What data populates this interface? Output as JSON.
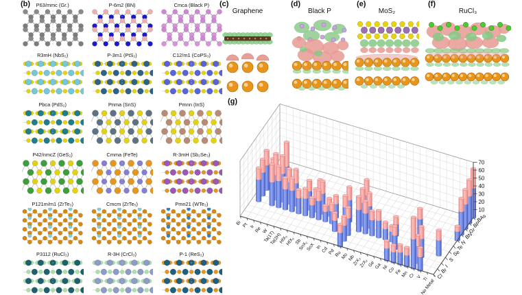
{
  "panel_b": {
    "label": "(b)",
    "structures": [
      {
        "title": "P63/mmc (Gr.)",
        "pattern": "honeycomb",
        "c1": "#7d7d7d",
        "c2": "#8a8a8a"
      },
      {
        "title": "P-6m2 (BN)",
        "pattern": "honeycomb",
        "c1": "#1a1acc",
        "c2": "#efb0ac"
      },
      {
        "title": "Cmca (Black P)",
        "pattern": "honeycomb",
        "c1": "#d993dd",
        "c2": "#cf86d6"
      },
      {
        "title": "R3mH (NbS₂)",
        "pattern": "tri",
        "c1": "#72c9d8",
        "c2": "#e3d211"
      },
      {
        "title": "P-3m1 (PtS₂)",
        "pattern": "tri",
        "c1": "#2f6286",
        "c2": "#e3d211"
      },
      {
        "title": "C12/m1 (CoPS₃)",
        "pattern": "tri",
        "c1": "#5a63d8",
        "c2": "#e3d211"
      },
      {
        "title": "Pbca (PdS₂)",
        "pattern": "tri",
        "c1": "#1f7d8c",
        "c2": "#e3d211"
      },
      {
        "title": "Pnma (SnS)",
        "pattern": "checker",
        "c1": "#5d7283",
        "c2": "#e3d211"
      },
      {
        "title": "Pmnn (InS)",
        "pattern": "checker",
        "c1": "#b98a76",
        "c2": "#e3d211"
      },
      {
        "title": "P42/nmcZ (GeS₂)",
        "pattern": "checker",
        "c1": "#3e9e3e",
        "c2": "#e3d211"
      },
      {
        "title": "Cmma (FeTe)",
        "pattern": "checker",
        "c1": "#e59620",
        "c2": "#847fd2"
      },
      {
        "title": "R-3mH (Sb₂Se₃)",
        "pattern": "tri",
        "c1": "#9b59b6",
        "c2": "#e59620"
      },
      {
        "title": "P121m/m1 (ZrTe₃)",
        "pattern": "zigzag",
        "c1": "#d8880f",
        "c2": "#7fd0da"
      },
      {
        "title": "Cmcm (ZrTe₅)",
        "pattern": "zigzag",
        "c1": "#d8880f",
        "c2": "#7fd0da"
      },
      {
        "title": "Pmn21 (WTe₂)",
        "pattern": "zigzag",
        "c1": "#d8880f",
        "c2": "#2f86c8"
      },
      {
        "title": "P3112 (RuCl₃)",
        "pattern": "tri",
        "c1": "#1f6070",
        "c2": "#a9e0a9"
      },
      {
        "title": "R-3H (CrCl₃)",
        "pattern": "tri",
        "c1": "#8e9cc9",
        "c2": "#a9e0a9"
      },
      {
        "title": "P-1 (ReS₂)",
        "pattern": "tri",
        "c1": "#1f6080",
        "c2": "#e59620"
      }
    ]
  },
  "panel_c": {
    "label": "(c)",
    "title": "Graphene"
  },
  "panel_d": {
    "label": "(d)",
    "title": "Black P"
  },
  "panel_e": {
    "label": "(e)",
    "title": "MoS₂"
  },
  "panel_f": {
    "label": "(f)",
    "title": "RuCl₃"
  },
  "panel_g": {
    "label": "(g)"
  },
  "colors": {
    "substrate_gold": "#e8951e",
    "substrate_highlight": "#ffd9a0",
    "substrate_edge": "#a96408",
    "charge_gain_green": "#86c886",
    "charge_loss_pink": "#e69a92",
    "bar_blue": "#5e7de8",
    "bar_pink": "#f09a98"
  },
  "chart_data": {
    "type": "bar",
    "subtype": "3d-stacked-cylinders",
    "x_categories": [
      "Bi",
      "Pt",
      "Ir",
      "Re",
      "W",
      "Ta(1T)",
      "Ta(2H)",
      "HfX₃",
      "HfX₂",
      "Sb",
      "SnX₂",
      "SnX",
      "In",
      "Cd",
      "Pd",
      "Ru",
      "Mo",
      "Nb",
      "ZrX₃",
      "ZrX₂",
      "Ge",
      "Ga",
      "Ni",
      "Co",
      "Fe",
      "Mn",
      "Cr",
      "V",
      "Ti",
      "No Metal"
    ],
    "y_categories": [
      "Cl",
      "Br",
      "I",
      "S",
      "Se",
      "Te",
      "N",
      "BN",
      "Gr",
      "BP",
      "BAs"
    ],
    "z_ticks": [
      10,
      20,
      30,
      40,
      50,
      60,
      70
    ],
    "z_range": [
      0,
      70
    ],
    "grid": true,
    "series": [
      {
        "name": "blue-segment",
        "color": "#5e7de8"
      },
      {
        "name": "pink-segment",
        "color": "#f09a98"
      }
    ],
    "bars": [
      {
        "x": "Pt",
        "y": "S",
        "blue": 28,
        "pink": 14
      },
      {
        "x": "Pt",
        "y": "Se",
        "blue": 30,
        "pink": 16
      },
      {
        "x": "Pt",
        "y": "Te",
        "blue": 32,
        "pink": 18
      },
      {
        "x": "Ir",
        "y": "Te",
        "blue": 26,
        "pink": 16
      },
      {
        "x": "Re",
        "y": "S",
        "blue": 30,
        "pink": 22
      },
      {
        "x": "Re",
        "y": "Se",
        "blue": 32,
        "pink": 26
      },
      {
        "x": "W",
        "y": "S",
        "blue": 34,
        "pink": 18
      },
      {
        "x": "W",
        "y": "Se",
        "blue": 36,
        "pink": 22
      },
      {
        "x": "W",
        "y": "Te",
        "blue": 38,
        "pink": 30
      },
      {
        "x": "Ta(1T)",
        "y": "S",
        "blue": 26,
        "pink": 14
      },
      {
        "x": "Ta(1T)",
        "y": "Se",
        "blue": 28,
        "pink": 16
      },
      {
        "x": "Ta(2H)",
        "y": "S",
        "blue": 27,
        "pink": 15
      },
      {
        "x": "Ta(2H)",
        "y": "Se",
        "blue": 29,
        "pink": 17
      },
      {
        "x": "HfX₃",
        "y": "S",
        "blue": 20,
        "pink": 10
      },
      {
        "x": "HfX₂",
        "y": "S",
        "blue": 22,
        "pink": 12
      },
      {
        "x": "HfX₂",
        "y": "Se",
        "blue": 24,
        "pink": 13
      },
      {
        "x": "Sb",
        "y": "S",
        "blue": 16,
        "pink": 9
      },
      {
        "x": "Sb",
        "y": "Se",
        "blue": 18,
        "pink": 11
      },
      {
        "x": "Sb",
        "y": "Te",
        "blue": 20,
        "pink": 13
      },
      {
        "x": "SnX₂",
        "y": "S",
        "blue": 24,
        "pink": 13
      },
      {
        "x": "SnX₂",
        "y": "Se",
        "blue": 26,
        "pink": 15
      },
      {
        "x": "SnX",
        "y": "S",
        "blue": 13,
        "pink": 7
      },
      {
        "x": "SnX",
        "y": "Se",
        "blue": 14,
        "pink": 8
      },
      {
        "x": "In",
        "y": "S",
        "blue": 16,
        "pink": 9
      },
      {
        "x": "In",
        "y": "Se",
        "blue": 18,
        "pink": 10
      },
      {
        "x": "Cd",
        "y": "I",
        "blue": 14,
        "pink": 9
      },
      {
        "x": "Pd",
        "y": "S",
        "blue": 26,
        "pink": 14
      },
      {
        "x": "Pd",
        "y": "Se",
        "blue": 28,
        "pink": 16
      },
      {
        "x": "Ru",
        "y": "Cl",
        "blue": 18,
        "pink": 10
      },
      {
        "x": "Ru",
        "y": "Br",
        "blue": 20,
        "pink": 11
      },
      {
        "x": "Ru",
        "y": "I",
        "blue": 22,
        "pink": 13
      },
      {
        "x": "Mo",
        "y": "S",
        "blue": 28,
        "pink": 16
      },
      {
        "x": "Mo",
        "y": "Se",
        "blue": 30,
        "pink": 17
      },
      {
        "x": "Mo",
        "y": "Te",
        "blue": 32,
        "pink": 19
      },
      {
        "x": "Nb",
        "y": "S",
        "blue": 26,
        "pink": 15
      },
      {
        "x": "Nb",
        "y": "Se",
        "blue": 28,
        "pink": 16
      },
      {
        "x": "ZrX₃",
        "y": "S",
        "blue": 20,
        "pink": 11
      },
      {
        "x": "ZrX₂",
        "y": "S",
        "blue": 22,
        "pink": 12
      },
      {
        "x": "Ge",
        "y": "S",
        "blue": 14,
        "pink": 8
      },
      {
        "x": "Ga",
        "y": "S",
        "blue": 13,
        "pink": 7
      },
      {
        "x": "Ga",
        "y": "Se",
        "blue": 15,
        "pink": 9
      },
      {
        "x": "Ni",
        "y": "Cl",
        "blue": 16,
        "pink": 9
      },
      {
        "x": "Ni",
        "y": "I",
        "blue": 18,
        "pink": 11
      },
      {
        "x": "Co",
        "y": "Cl",
        "blue": 14,
        "pink": 8
      },
      {
        "x": "Fe",
        "y": "Cl",
        "blue": 16,
        "pink": 9
      },
      {
        "x": "Fe",
        "y": "Te",
        "blue": 22,
        "pink": 13
      },
      {
        "x": "Mn",
        "y": "Cl",
        "blue": 15,
        "pink": 9
      },
      {
        "x": "Cr",
        "y": "Cl",
        "blue": 38,
        "pink": 27
      },
      {
        "x": "Cr",
        "y": "Br",
        "blue": 22,
        "pink": 13
      },
      {
        "x": "Cr",
        "y": "I",
        "blue": 24,
        "pink": 15
      },
      {
        "x": "V",
        "y": "Cl",
        "blue": 18,
        "pink": 11
      },
      {
        "x": "Ti",
        "y": "S",
        "blue": 20,
        "pink": 12
      },
      {
        "x": "No Metal",
        "y": "N",
        "blue": 12,
        "pink": 6
      },
      {
        "x": "No Metal",
        "y": "BN",
        "blue": 30,
        "pink": 16
      },
      {
        "x": "No Metal",
        "y": "Gr",
        "blue": 32,
        "pink": 18
      },
      {
        "x": "No Metal",
        "y": "BP",
        "blue": 35,
        "pink": 20
      },
      {
        "x": "No Metal",
        "y": "BAs",
        "blue": 38,
        "pink": 24
      }
    ]
  }
}
